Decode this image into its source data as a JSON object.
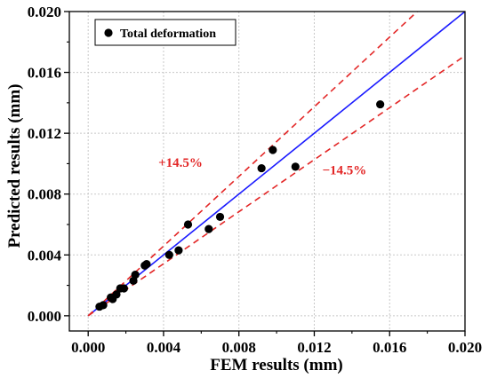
{
  "chart_data": {
    "type": "scatter",
    "xlabel": "FEM results (mm)",
    "ylabel": "Predicted results (mm)",
    "xlim": [
      -0.001,
      0.02
    ],
    "ylim": [
      -0.001,
      0.02
    ],
    "x_ticks": [
      "0.000",
      "0.004",
      "0.008",
      "0.012",
      "0.016",
      "0.020"
    ],
    "y_ticks": [
      "0.000",
      "0.004",
      "0.008",
      "0.012",
      "0.016",
      "0.020"
    ],
    "x_tick_values": [
      0,
      0.004,
      0.008,
      0.012,
      0.016,
      0.02
    ],
    "y_tick_values": [
      0,
      0.004,
      0.008,
      0.012,
      0.016,
      0.02
    ],
    "grid": true,
    "legend_position": "top-left",
    "series": [
      {
        "name": "Total deformation",
        "color": "#000000",
        "marker": "circle",
        "points": [
          {
            "x": 0.0006,
            "y": 0.0006
          },
          {
            "x": 0.0008,
            "y": 0.0007
          },
          {
            "x": 0.0012,
            "y": 0.0012
          },
          {
            "x": 0.0013,
            "y": 0.0011
          },
          {
            "x": 0.0015,
            "y": 0.0014
          },
          {
            "x": 0.0017,
            "y": 0.0018
          },
          {
            "x": 0.0019,
            "y": 0.0018
          },
          {
            "x": 0.0024,
            "y": 0.0023
          },
          {
            "x": 0.0025,
            "y": 0.0027
          },
          {
            "x": 0.003,
            "y": 0.0033
          },
          {
            "x": 0.0031,
            "y": 0.0034
          },
          {
            "x": 0.0043,
            "y": 0.004
          },
          {
            "x": 0.0048,
            "y": 0.0043
          },
          {
            "x": 0.0053,
            "y": 0.006
          },
          {
            "x": 0.0064,
            "y": 0.0057
          },
          {
            "x": 0.007,
            "y": 0.0065
          },
          {
            "x": 0.0092,
            "y": 0.0097
          },
          {
            "x": 0.0098,
            "y": 0.0109
          },
          {
            "x": 0.011,
            "y": 0.0098
          },
          {
            "x": 0.0155,
            "y": 0.0139
          }
        ]
      }
    ],
    "reference_lines": [
      {
        "slope": 1.0,
        "color": "#1a1aff",
        "style": "solid"
      },
      {
        "slope": 1.145,
        "color": "#e32626",
        "style": "dashed"
      },
      {
        "slope": 0.855,
        "color": "#e32626",
        "style": "dashed"
      }
    ],
    "annotations": [
      {
        "text": "+14.5%",
        "x": 0.0049,
        "y": 0.0098,
        "color": "#e32626"
      },
      {
        "text": "−14.5%",
        "x": 0.0136,
        "y": 0.0093,
        "color": "#e32626"
      }
    ]
  }
}
